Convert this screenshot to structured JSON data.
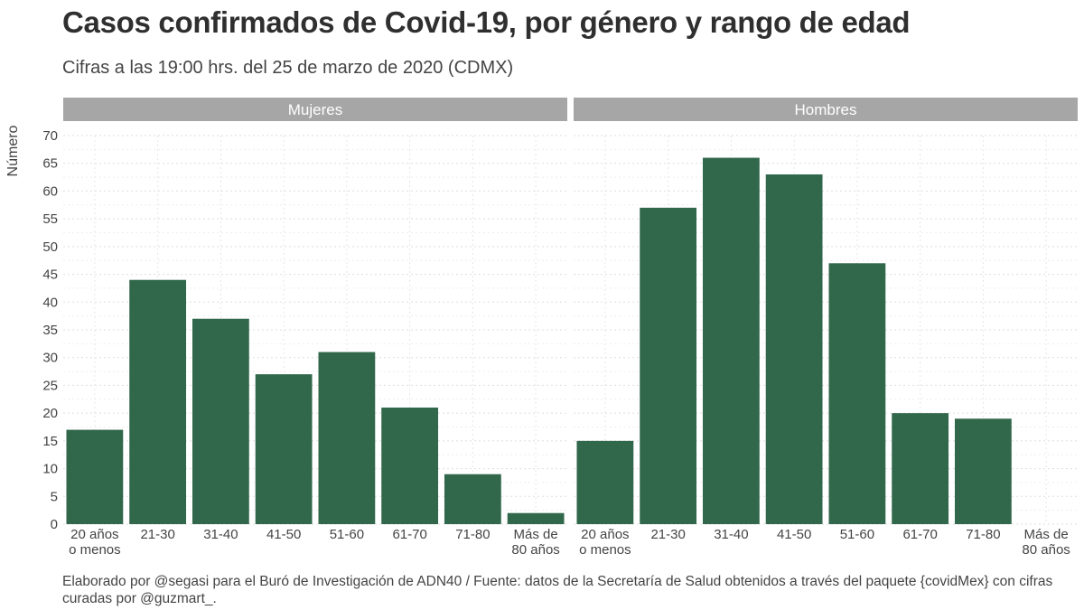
{
  "chart_data": {
    "type": "bar",
    "title": "Casos confirmados de Covid-19, por género y rango de edad",
    "subtitle": "Cifras a las 19:00 hrs. del 25 de marzo de 2020 (CDMX)",
    "ylabel": "Número",
    "xlabel": "",
    "ylim": [
      0,
      70
    ],
    "yticks": [
      "0",
      "5",
      "10",
      "15",
      "20",
      "25",
      "30",
      "35",
      "40",
      "45",
      "50",
      "55",
      "60",
      "65",
      "70"
    ],
    "grid": true,
    "categories": [
      [
        "20 años",
        "o menos"
      ],
      [
        "21-30"
      ],
      [
        "31-40"
      ],
      [
        "41-50"
      ],
      [
        "51-60"
      ],
      [
        "61-70"
      ],
      [
        "71-80"
      ],
      [
        "Más de",
        "80 años"
      ]
    ],
    "panels": [
      {
        "name": "Mujeres",
        "values": [
          17,
          44,
          37,
          27,
          31,
          21,
          9,
          2
        ]
      },
      {
        "name": "Hombres",
        "values": [
          15,
          57,
          66,
          63,
          47,
          20,
          19,
          0
        ]
      }
    ],
    "bar_color": "#31674B",
    "strip_color": "#A6A6A6",
    "caption": "Elaborado por @segasi  para el Buró de Investigación de ADN40 / Fuente: datos de la Secretaría de Salud obtenidos a través del paquete {covidMex} con cifras curadas por @guzmart_."
  }
}
